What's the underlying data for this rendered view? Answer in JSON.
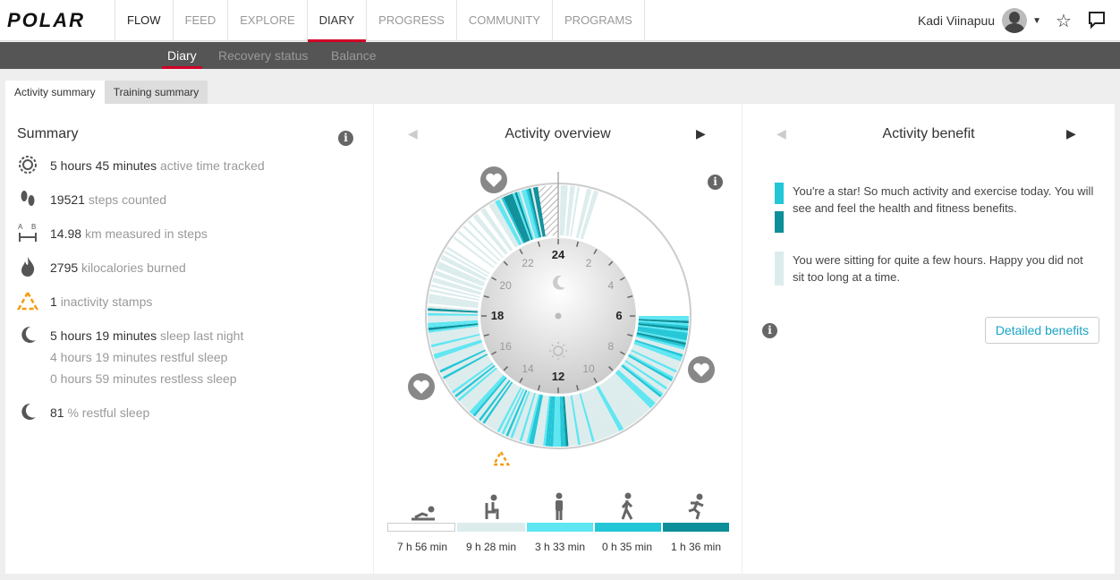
{
  "header": {
    "logo": "POLAR",
    "nav": [
      {
        "label": "FLOW"
      },
      {
        "label": "FEED"
      },
      {
        "label": "EXPLORE"
      },
      {
        "label": "DIARY"
      },
      {
        "label": "PROGRESS"
      },
      {
        "label": "COMMUNITY"
      },
      {
        "label": "PROGRAMS"
      }
    ],
    "user_name": "Kadi Viinapuu",
    "star_icon": "star-icon",
    "chat_icon": "chat-icon"
  },
  "subnav": {
    "items": [
      "Diary",
      "Recovery status",
      "Balance"
    ],
    "active": "Diary"
  },
  "tabs": {
    "items": [
      "Activity summary",
      "Training summary"
    ],
    "active": "Activity summary"
  },
  "summary": {
    "title": "Summary",
    "rows": [
      {
        "icon": "activity-ring-icon",
        "value": "5 hours 45 minutes",
        "label": "active time tracked"
      },
      {
        "icon": "footsteps-icon",
        "value": "19521",
        "label": "steps counted"
      },
      {
        "icon": "distance-icon",
        "value": "14.98",
        "label": "km measured in steps"
      },
      {
        "icon": "flame-icon",
        "value": "2795",
        "label": "kilocalories burned"
      },
      {
        "icon": "inactivity-icon",
        "value": "1",
        "label": "inactivity stamps"
      },
      {
        "icon": "moon-icon",
        "value": "5 hours 19 minutes",
        "label": "sleep last night"
      },
      {
        "icon": "",
        "value": "",
        "label": "4 hours 19 minutes restful sleep"
      },
      {
        "icon": "",
        "value": "",
        "label": "0 hours 59 minutes restless sleep"
      },
      {
        "icon": "moon-icon",
        "value": "81",
        "label": "% restful sleep"
      }
    ]
  },
  "overview": {
    "title": "Activity overview",
    "hours": [
      "24",
      "2",
      "4",
      "6",
      "8",
      "10",
      "12",
      "14",
      "16",
      "18",
      "20",
      "22"
    ],
    "legend": [
      {
        "icon": "lying-icon",
        "value": "7 h 56 min",
        "color": "#ffffff"
      },
      {
        "icon": "sitting-icon",
        "value": "9 h 28 min",
        "color": "#dcecec"
      },
      {
        "icon": "standing-icon",
        "value": "3 h 33 min",
        "color": "#5ee6f2"
      },
      {
        "icon": "walking-icon",
        "value": "0 h 35 min",
        "color": "#22c6d6"
      },
      {
        "icon": "running-icon",
        "value": "1 h 36 min",
        "color": "#0d8f99"
      }
    ]
  },
  "benefit": {
    "title": "Activity benefit",
    "items": [
      {
        "text": "You're a star! So much activity and exercise today. You will see and feel the health and fitness benefits."
      },
      {
        "text": "You were sitting for quite a few hours. Happy you did not sit too long at a time."
      }
    ],
    "button": "Detailed benefits"
  }
}
